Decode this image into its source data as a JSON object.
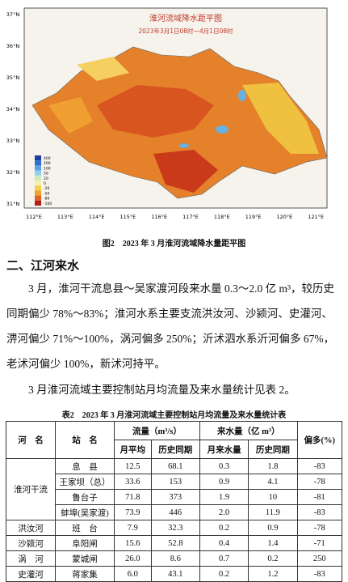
{
  "figure": {
    "map_title": "淮河流域降水距平图",
    "map_subtitle": "2023年3月1日08时—4月1日08时",
    "lat_labels": [
      "37°N",
      "36°N",
      "35°N",
      "34°N",
      "33°N",
      "32°N",
      "31°N"
    ],
    "lon_labels": [
      "112°E",
      "113°E",
      "114°E",
      "115°E",
      "116°E",
      "117°E",
      "118°E",
      "119°E",
      "120°E",
      "121°E"
    ],
    "legend": [
      "400",
      "200",
      "100",
      "50",
      "20",
      "0",
      "-20",
      "-50",
      "-80",
      "-100"
    ],
    "caption": "图2　2023 年 3 月淮河流域降水量距平图"
  },
  "section": {
    "heading": "二、江河来水",
    "paragraphs": [
      {
        "lines": [
          "3 月，淮河干流息县～吴家渡河段来水量 0.3～2.0 亿 m³，较历史",
          "同期偏少 78%～83%；淮河水系主要支流洪汝河、沙颍河、史灌河、",
          "淠河偏少 71%～100%，涡河偏多 250%；沂沭泗水系沂河偏多 67%，",
          "老沭河偏少 100%，新沭河持平。"
        ]
      },
      {
        "lines": [
          "3 月淮河流域主要控制站月均流量及来水量统计见表 2。"
        ]
      }
    ]
  },
  "table": {
    "caption": "表2　2023 年 3 月淮河流域主要控制站月均流量及来水量统计表",
    "header": {
      "river": "河　名",
      "station": "站　名",
      "flow": "流量（m³/s）",
      "volume": "来水量（亿 m³）",
      "change": "偏多(%)",
      "sub": [
        "月平均",
        "历史同期",
        "月来水量",
        "历史同期"
      ]
    },
    "groups": [
      {
        "river": "淮河干流",
        "rows": [
          [
            "息　县",
            "12.5",
            "68.1",
            "0.3",
            "1.8",
            "-83"
          ],
          [
            "王家坝（总）",
            "33.6",
            "153",
            "0.9",
            "4.1",
            "-78"
          ],
          [
            "鲁台子",
            "71.8",
            "373",
            "1.9",
            "10",
            "-81"
          ],
          [
            "蚌埠(吴家渡)",
            "73.9",
            "446",
            "2.0",
            "11.9",
            "-83"
          ]
        ]
      },
      {
        "river": "洪汝河",
        "rows": [
          [
            "班　台",
            "7.9",
            "32.3",
            "0.2",
            "0.9",
            "-78"
          ]
        ]
      },
      {
        "river": "沙颍河",
        "rows": [
          [
            "阜阳闸",
            "15.6",
            "52.8",
            "0.4",
            "1.4",
            "-71"
          ]
        ]
      },
      {
        "river": "涡　河",
        "rows": [
          [
            "蒙城闸",
            "26.0",
            "8.6",
            "0.7",
            "0.2",
            "250"
          ]
        ]
      },
      {
        "river": "史灌河",
        "rows": [
          [
            "蒋家集",
            "6.0",
            "43.1",
            "0.2",
            "1.2",
            "-83"
          ]
        ]
      }
    ]
  }
}
